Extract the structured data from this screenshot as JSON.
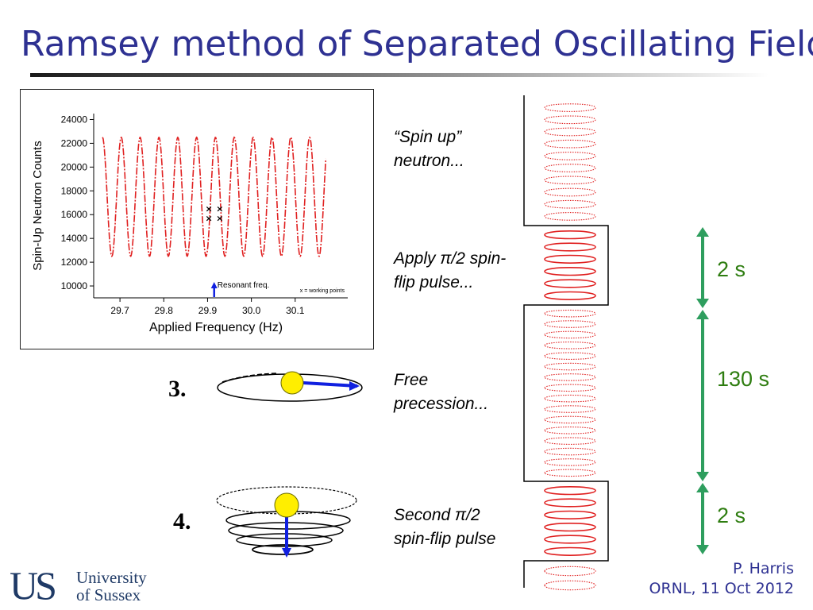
{
  "slide": {
    "title": "Ramsey method of Separated Oscillating Fields",
    "steps": [
      {
        "label_line1": "“Spin up”",
        "label_line2": "neutron..."
      },
      {
        "label_line1": "Apply π/2 spin-",
        "label_line2": "flip pulse..."
      },
      {
        "label_line1": "Free",
        "label_line2": "precession..."
      },
      {
        "label_line1": "Second π/2",
        "label_line2": "spin-flip pulse"
      }
    ],
    "step_numbers": [
      "3.",
      "4."
    ],
    "durations": [
      "2 s",
      "130 s",
      "2 s"
    ],
    "author": "P. Harris",
    "event": "ORNL, 11 Oct 2012",
    "logo_text": {
      "mark": "US",
      "line1": "University",
      "line2": "of Sussex"
    },
    "colors": {
      "title": "#2e3192",
      "signal": "#e02020",
      "arrow": "#2e9e5e",
      "spin": "#1020e0",
      "neutron": "#ffee00"
    }
  },
  "chart_data": {
    "type": "line",
    "xlabel": "Applied Frequency (Hz)",
    "ylabel": "Spin-Up Neutron Counts",
    "xlim": [
      29.64,
      30.22
    ],
    "ylim": [
      9000,
      24500
    ],
    "x_ticks": [
      "29.7",
      "29.8",
      "29.9",
      "30.0",
      "30.1"
    ],
    "y_ticks": [
      "10000",
      "12000",
      "14000",
      "16000",
      "18000",
      "20000",
      "22000",
      "24000"
    ],
    "series": [
      {
        "function": "fringe",
        "x_start": 29.66,
        "x_end": 30.17,
        "period_hz": 0.043,
        "peak_x": 29.66,
        "y_mean": 17500,
        "amplitude": 5000
      }
    ],
    "working_points": [
      {
        "x": 29.903,
        "y": 16500
      },
      {
        "x": 29.903,
        "y": 15700
      },
      {
        "x": 29.928,
        "y": 16500
      },
      {
        "x": 29.928,
        "y": 15700
      }
    ],
    "annotations": {
      "resonant": "Resonant freq.",
      "resonant_x": 29.915,
      "legend": "x = working points"
    }
  }
}
